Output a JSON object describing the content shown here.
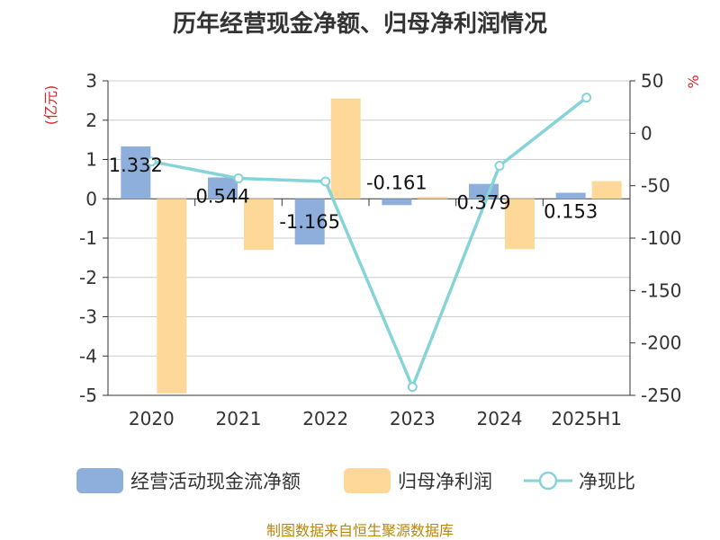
{
  "chart_data": {
    "type": "bar",
    "title": "历年经营现金净额、归母净利润情况",
    "categories": [
      "2020",
      "2021",
      "2022",
      "2023",
      "2024",
      "2025H1"
    ],
    "series": [
      {
        "name": "经营活动现金流净额",
        "type": "bar",
        "axis": "left",
        "color": "#8eaedc",
        "values": [
          1.332,
          0.544,
          -1.165,
          -0.161,
          0.379,
          0.153
        ]
      },
      {
        "name": "归母净利润",
        "type": "bar",
        "axis": "left",
        "color": "#fdd898",
        "values": [
          -4.95,
          -1.3,
          2.55,
          0.05,
          -1.28,
          0.45
        ]
      },
      {
        "name": "净现比",
        "type": "line",
        "axis": "right",
        "color": "#86d3d8",
        "values": [
          -27,
          -43,
          -46,
          -242,
          -31,
          34
        ]
      }
    ],
    "data_labels": [
      "1.332",
      "0.544",
      "-1.165",
      "-0.161",
      "0.379",
      "0.153"
    ],
    "y_left": {
      "unit": "(亿元)",
      "min": -5,
      "max": 3,
      "ticks": [
        3,
        2,
        1,
        0,
        -1,
        -2,
        -3,
        -4,
        -5
      ]
    },
    "y_right": {
      "unit": "%",
      "min": -250,
      "max": 50,
      "ticks": [
        50,
        0,
        -50,
        -100,
        -150,
        -200,
        -250
      ]
    },
    "grid": true,
    "legend_position": "bottom"
  },
  "source": "制图数据来自恒生聚源数据库"
}
